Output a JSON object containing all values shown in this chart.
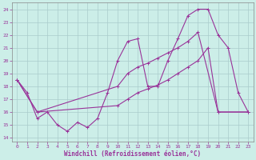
{
  "xlabel": "Windchill (Refroidissement éolien,°C)",
  "background_color": "#cceee8",
  "grid_color": "#aacccc",
  "line_color": "#993399",
  "xlim": [
    -0.5,
    23.5
  ],
  "ylim": [
    14,
    24.5
  ],
  "yticks": [
    14,
    15,
    16,
    17,
    18,
    19,
    20,
    21,
    22,
    23,
    24
  ],
  "xticks": [
    0,
    1,
    2,
    3,
    4,
    5,
    6,
    7,
    8,
    9,
    10,
    11,
    12,
    13,
    14,
    15,
    16,
    17,
    18,
    19,
    20,
    21,
    22,
    23
  ],
  "line1_x": [
    0,
    1,
    2,
    3,
    4,
    5,
    6,
    7,
    8,
    9,
    10,
    11,
    12,
    13,
    14,
    15,
    16,
    17,
    18,
    19,
    20,
    21,
    22,
    23
  ],
  "line1_y": [
    18.5,
    17.5,
    15.5,
    16.0,
    15.0,
    14.5,
    15.2,
    14.8,
    15.5,
    17.5,
    20.0,
    21.5,
    21.7,
    18.0,
    18.0,
    20.0,
    21.7,
    23.5,
    24.0,
    24.0,
    22.0,
    21.0,
    17.5,
    16.0
  ],
  "line2_x": [
    0,
    2,
    10,
    11,
    12,
    13,
    14,
    15,
    16,
    17,
    18,
    20,
    23
  ],
  "line2_y": [
    18.5,
    16.0,
    18.0,
    19.0,
    19.5,
    19.8,
    20.2,
    20.6,
    21.0,
    21.5,
    22.2,
    16.0,
    16.0
  ],
  "line3_x": [
    0,
    2,
    10,
    11,
    12,
    13,
    14,
    15,
    16,
    17,
    18,
    19,
    20,
    23
  ],
  "line3_y": [
    18.5,
    16.0,
    16.5,
    17.0,
    17.5,
    17.8,
    18.1,
    18.5,
    19.0,
    19.5,
    20.0,
    21.0,
    16.0,
    16.0
  ]
}
